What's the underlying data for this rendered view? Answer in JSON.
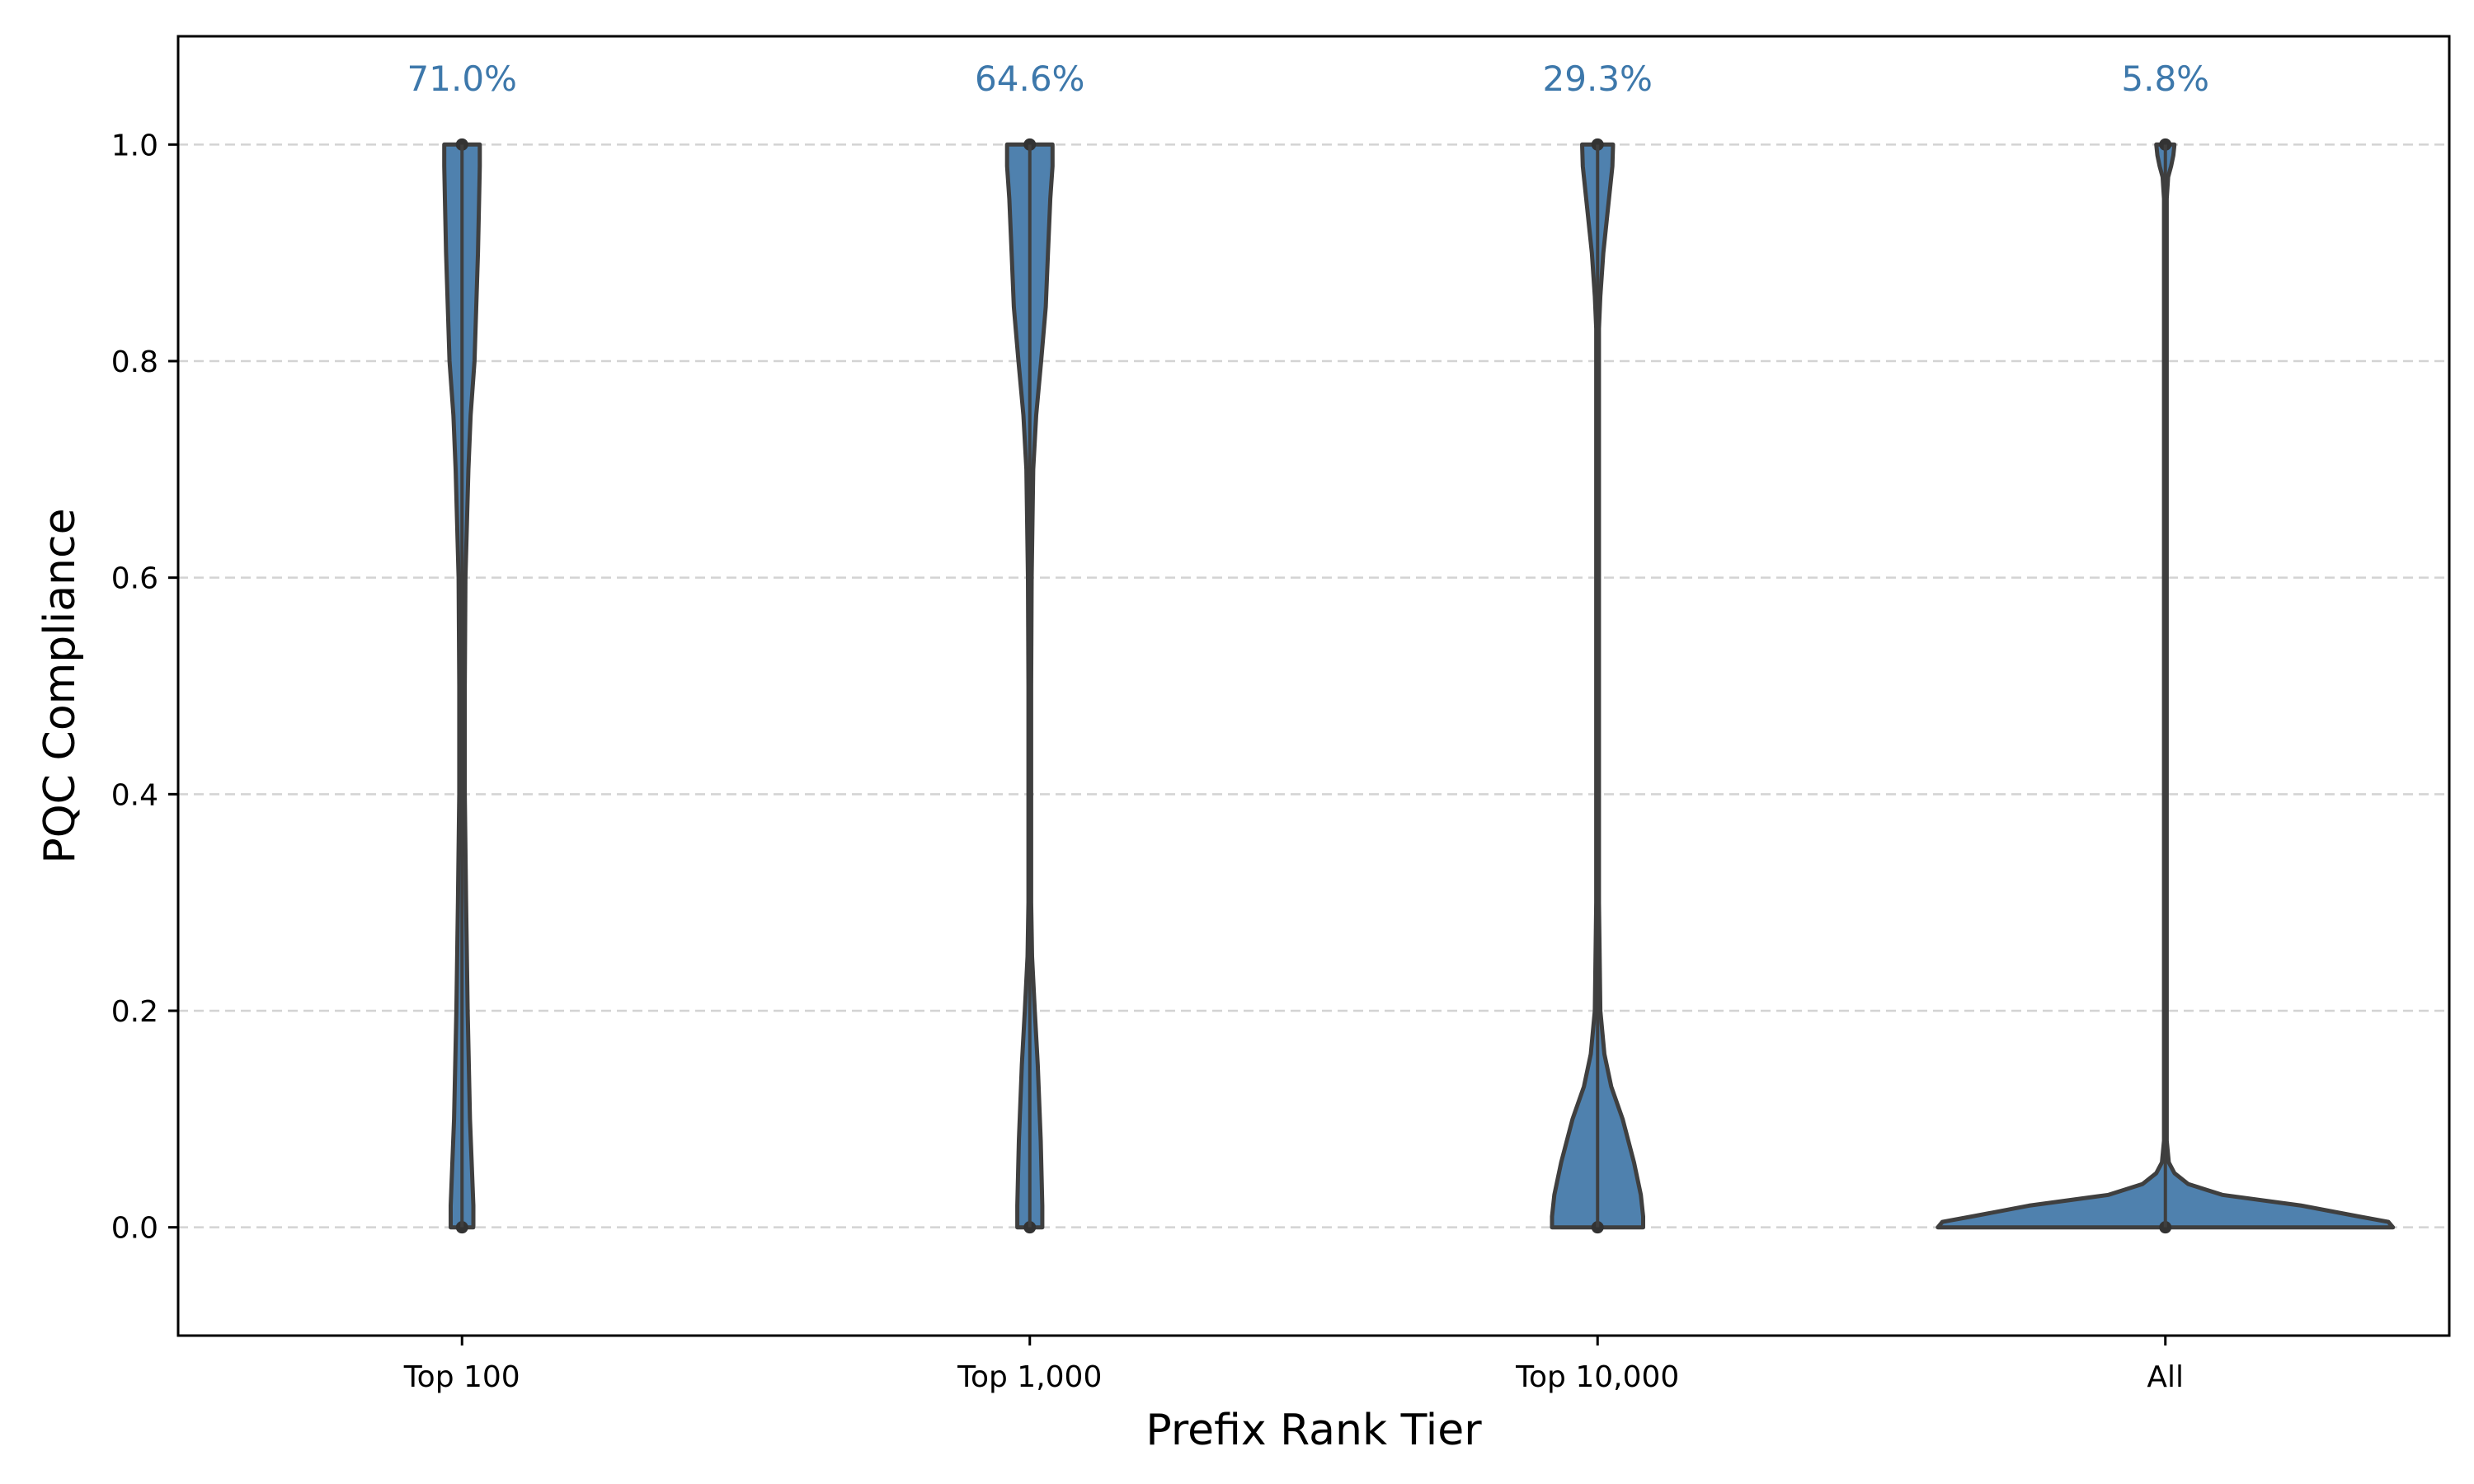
{
  "chart_data": {
    "type": "violin",
    "xlabel": "Prefix Rank Tier",
    "ylabel": "PQC Compliance",
    "ylim": [
      -0.1,
      1.1
    ],
    "yticks": [
      "0.0",
      "0.2",
      "0.4",
      "0.6",
      "0.8",
      "1.0"
    ],
    "grid": "horizontal dashed",
    "color": "#4f81ae",
    "label_color": "#3d78ab",
    "categories": [
      "Top 100",
      "Top 1,000",
      "Top 10,000",
      "All"
    ],
    "compliance_labels": [
      "71.0%",
      "64.6%",
      "29.3%",
      "5.8%"
    ],
    "series": [
      {
        "category": "Top 100",
        "range": [
          0,
          1
        ],
        "density_profile": [
          [
            0.0,
            0.05
          ],
          [
            0.02,
            0.05
          ],
          [
            0.1,
            0.035
          ],
          [
            0.2,
            0.025
          ],
          [
            0.3,
            0.018
          ],
          [
            0.4,
            0.012
          ],
          [
            0.5,
            0.012
          ],
          [
            0.6,
            0.015
          ],
          [
            0.7,
            0.028
          ],
          [
            0.75,
            0.038
          ],
          [
            0.8,
            0.055
          ],
          [
            0.9,
            0.07
          ],
          [
            0.95,
            0.075
          ],
          [
            0.98,
            0.078
          ],
          [
            1.0,
            0.078
          ]
        ]
      },
      {
        "category": "Top 1,000",
        "range": [
          0,
          1
        ],
        "density_profile": [
          [
            0.0,
            0.055
          ],
          [
            0.02,
            0.055
          ],
          [
            0.08,
            0.048
          ],
          [
            0.15,
            0.035
          ],
          [
            0.2,
            0.022
          ],
          [
            0.25,
            0.01
          ],
          [
            0.3,
            0.006
          ],
          [
            0.4,
            0.006
          ],
          [
            0.5,
            0.006
          ],
          [
            0.6,
            0.008
          ],
          [
            0.7,
            0.015
          ],
          [
            0.75,
            0.028
          ],
          [
            0.8,
            0.05
          ],
          [
            0.85,
            0.07
          ],
          [
            0.9,
            0.08
          ],
          [
            0.95,
            0.09
          ],
          [
            0.98,
            0.1
          ],
          [
            1.0,
            0.1
          ]
        ]
      },
      {
        "category": "Top 10,000",
        "range": [
          0,
          1
        ],
        "density_profile": [
          [
            0.0,
            0.2
          ],
          [
            0.01,
            0.2
          ],
          [
            0.03,
            0.19
          ],
          [
            0.06,
            0.16
          ],
          [
            0.1,
            0.11
          ],
          [
            0.13,
            0.06
          ],
          [
            0.16,
            0.03
          ],
          [
            0.2,
            0.012
          ],
          [
            0.3,
            0.006
          ],
          [
            0.5,
            0.006
          ],
          [
            0.7,
            0.006
          ],
          [
            0.83,
            0.006
          ],
          [
            0.86,
            0.012
          ],
          [
            0.9,
            0.025
          ],
          [
            0.94,
            0.045
          ],
          [
            0.98,
            0.065
          ],
          [
            1.0,
            0.068
          ]
        ]
      },
      {
        "category": "All",
        "range": [
          0,
          1
        ],
        "density_profile": [
          [
            0.0,
            1.0
          ],
          [
            0.005,
            0.98
          ],
          [
            0.01,
            0.85
          ],
          [
            0.02,
            0.6
          ],
          [
            0.03,
            0.25
          ],
          [
            0.04,
            0.1
          ],
          [
            0.05,
            0.04
          ],
          [
            0.06,
            0.015
          ],
          [
            0.08,
            0.006
          ],
          [
            0.2,
            0.006
          ],
          [
            0.5,
            0.006
          ],
          [
            0.8,
            0.006
          ],
          [
            0.95,
            0.006
          ],
          [
            0.97,
            0.012
          ],
          [
            0.98,
            0.025
          ],
          [
            0.99,
            0.035
          ],
          [
            1.0,
            0.04
          ]
        ]
      }
    ]
  }
}
